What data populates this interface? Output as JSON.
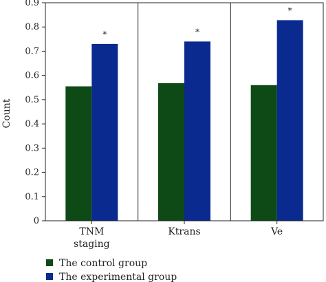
{
  "chart_data": {
    "type": "bar",
    "categories": [
      "TNM staging",
      "Ktrans",
      "Ve"
    ],
    "category_label_lines": [
      [
        "TNM",
        "staging"
      ],
      [
        "Ktrans"
      ],
      [
        "Ve"
      ]
    ],
    "series": [
      {
        "name": "The control group",
        "values": [
          0.555,
          0.568,
          0.56
        ],
        "color": "#0e4a16"
      },
      {
        "name": "The experimental group",
        "values": [
          0.73,
          0.74,
          0.828
        ],
        "color": "#0b2a8f"
      }
    ],
    "annotations": [
      "*",
      "*",
      "*"
    ],
    "title": "",
    "xlabel": "",
    "ylabel": "Count",
    "ylim": [
      0,
      0.9
    ],
    "yticks": [
      "0",
      "0.1",
      "0.2",
      "0.3",
      "0.4",
      "0.5",
      "0.6",
      "0.7",
      "0.8",
      "0.9"
    ],
    "grid": false,
    "legend_position": "bottom-left"
  }
}
